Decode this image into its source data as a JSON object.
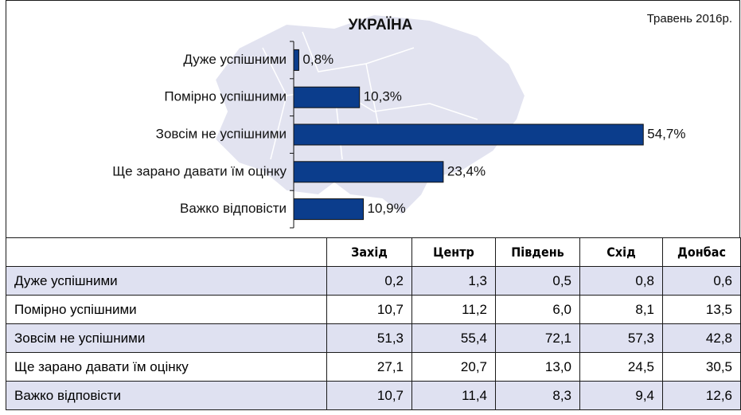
{
  "chart_data": {
    "type": "bar",
    "title": "УКРАЇНА",
    "subtitle": "Травень 2016р.",
    "categories": [
      "Дуже успішними",
      "Помірно успішними",
      "Зовсім не успішними",
      "Ще зарано давати їм оцінку",
      "Важко відповісти"
    ],
    "values": [
      0.8,
      10.3,
      54.7,
      23.4,
      10.9
    ],
    "value_labels": [
      "0,8%",
      "10,3%",
      "54,7%",
      "23,4%",
      "10,9%"
    ],
    "color": "#0b3d8c"
  },
  "table": {
    "columns": [
      "Захід",
      "Центр",
      "Південь",
      "Схід",
      "Донбас"
    ],
    "rows": [
      {
        "label": "Дуже успішними",
        "values": [
          "0,2",
          "1,3",
          "0,5",
          "0,8",
          "0,6"
        ]
      },
      {
        "label": "Помірно успішними",
        "values": [
          "10,7",
          "11,2",
          "6,0",
          "8,1",
          "13,5"
        ]
      },
      {
        "label": "Зовсім не успішними",
        "values": [
          "51,3",
          "55,4",
          "72,1",
          "57,3",
          "42,8"
        ]
      },
      {
        "label": "Ще зарано давати їм оцінку",
        "values": [
          "27,1",
          "20,7",
          "13,0",
          "24,5",
          "30,5"
        ]
      },
      {
        "label": "Важко відповісти",
        "values": [
          "10,7",
          "11,4",
          "8,3",
          "9,4",
          "12,6"
        ]
      }
    ]
  }
}
